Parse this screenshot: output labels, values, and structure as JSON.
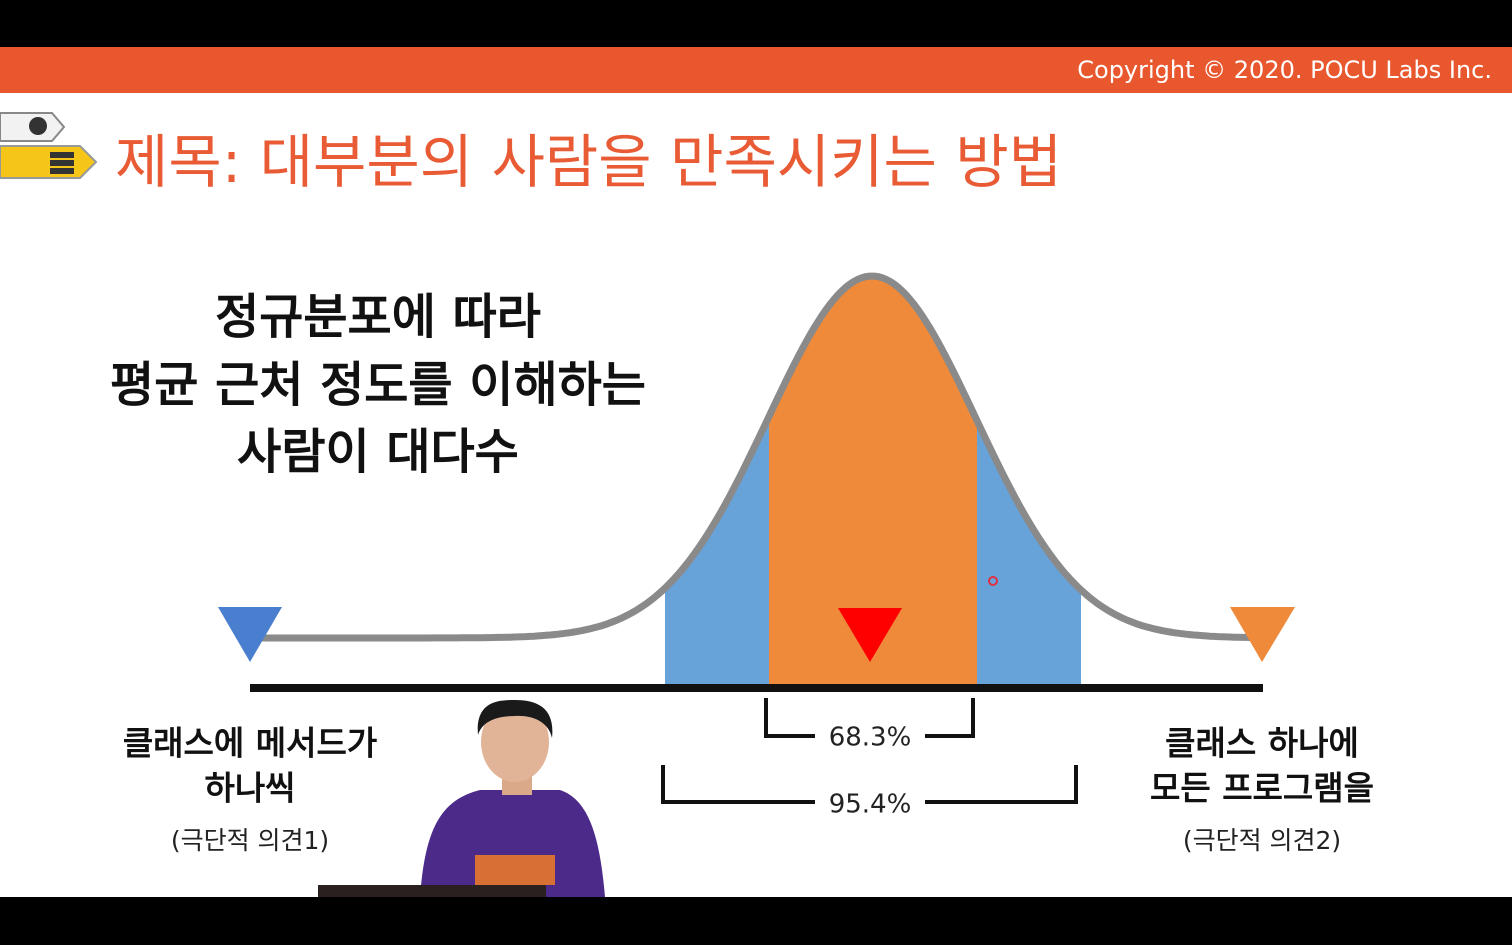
{
  "header": {
    "copyright": "Copyright © 2020. POCU Labs Inc."
  },
  "slide": {
    "title": "제목: 대부분의 사람을 만족시키는 방법",
    "statement": [
      "정규분포에 따라",
      "평균 근처 정도를 이해하는",
      "사람이 대다수"
    ],
    "left_label": {
      "lines": [
        "클래스에 메서드가",
        "하나씩"
      ],
      "note": "(극단적 의견1)"
    },
    "right_label": {
      "lines": [
        "클래스 하나에",
        "모든 프로그램을"
      ],
      "note": "(극단적 의견2)"
    },
    "inner_range": "68.3%",
    "outer_range": "95.4%"
  }
}
